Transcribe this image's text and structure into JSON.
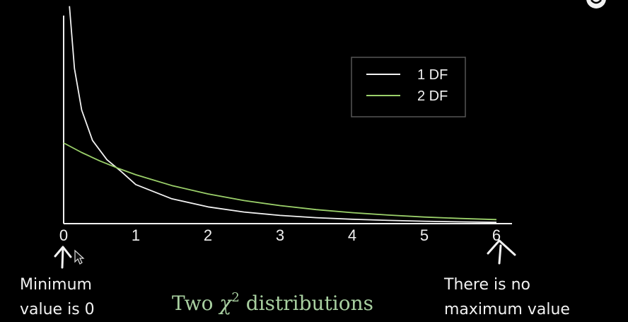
{
  "chart_data": {
    "type": "line",
    "title": "",
    "xlabel": "",
    "ylabel": "",
    "xlim": [
      0,
      6
    ],
    "x_ticks": [
      "0",
      "1",
      "2",
      "3",
      "4",
      "5",
      "6"
    ],
    "grid": false,
    "legend_position": "top-right",
    "series": [
      {
        "name": "1 DF",
        "color": "#f2f2f2",
        "x": [
          0.08,
          0.15,
          0.25,
          0.4,
          0.6,
          0.8,
          1,
          1.5,
          2,
          2.5,
          3,
          3.5,
          4,
          4.5,
          5,
          5.5,
          6
        ],
        "y": [
          1.348,
          0.961,
          0.704,
          0.516,
          0.396,
          0.322,
          0.242,
          0.154,
          0.104,
          0.072,
          0.051,
          0.037,
          0.027,
          0.02,
          0.015,
          0.011,
          0.008
        ]
      },
      {
        "name": "2 DF",
        "color": "#9bd06a",
        "x": [
          0,
          0.25,
          0.5,
          0.75,
          1,
          1.5,
          2,
          2.5,
          3,
          3.5,
          4,
          4.5,
          5,
          5.5,
          6
        ],
        "y": [
          0.5,
          0.441,
          0.389,
          0.344,
          0.303,
          0.236,
          0.184,
          0.143,
          0.112,
          0.087,
          0.068,
          0.053,
          0.041,
          0.032,
          0.025
        ]
      }
    ]
  },
  "annotations": {
    "min_line1": "Minimum",
    "min_line2": "value is 0",
    "max_line1": "There is no",
    "max_line2": "maximum value"
  },
  "caption": {
    "prefix": "Two ",
    "symbol": "χ",
    "superscript": "2",
    "suffix": " distributions",
    "color": "#a8cfa0"
  },
  "colors": {
    "background": "#000000",
    "axis": "#f0f0f0",
    "legend_border": "#555555"
  }
}
